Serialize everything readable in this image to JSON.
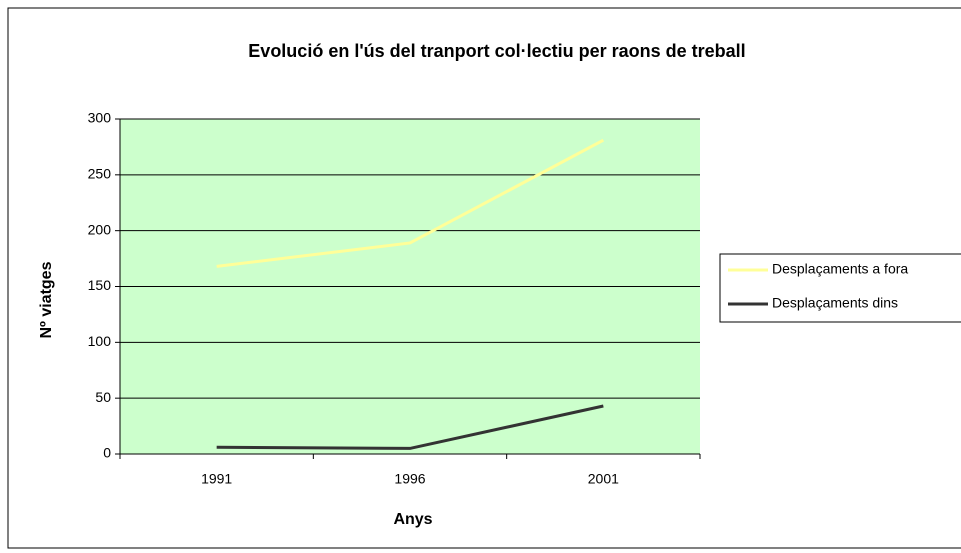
{
  "chart_data": {
    "type": "line",
    "title": "Evolució en l'ús del tranport col·lectiu per raons de treball",
    "x_label": "Anys",
    "y_label": "Nº viatges",
    "categories": [
      "1991",
      "1996",
      "2001"
    ],
    "series": [
      {
        "name": "Desplaçaments a fora",
        "color": "#ffff99",
        "values": [
          168,
          189,
          281
        ]
      },
      {
        "name": "Desplaçaments dins",
        "color": "#333333",
        "values": [
          6,
          5,
          43
        ]
      }
    ],
    "ylim": [
      0,
      300
    ],
    "yticks": [
      0,
      50,
      100,
      150,
      200,
      250,
      300
    ],
    "grid": true,
    "legend": "right",
    "plot_background": "#ccffcc"
  }
}
